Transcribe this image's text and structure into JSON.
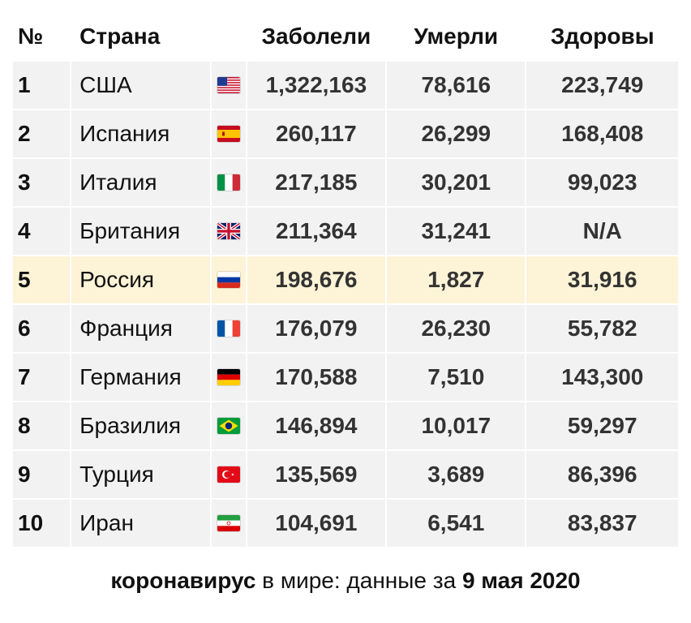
{
  "table": {
    "headers": {
      "num": "№",
      "country": "Страна",
      "cases": "Заболели",
      "deaths": "Умерли",
      "recovered": "Здоровы"
    },
    "rows": [
      {
        "num": "1",
        "country": "США",
        "flag": "us-flag-icon",
        "cases": "1,322,163",
        "deaths": "78,616",
        "recovered": "223,749"
      },
      {
        "num": "2",
        "country": "Испания",
        "flag": "spain-flag-icon",
        "cases": "260,117",
        "deaths": "26,299",
        "recovered": "168,408"
      },
      {
        "num": "3",
        "country": "Италия",
        "flag": "italy-flag-icon",
        "cases": "217,185",
        "deaths": "30,201",
        "recovered": "99,023"
      },
      {
        "num": "4",
        "country": "Британия",
        "flag": "uk-flag-icon",
        "cases": "211,364",
        "deaths": "31,241",
        "recovered": "N/A"
      },
      {
        "num": "5",
        "country": "Россия",
        "flag": "russia-flag-icon",
        "cases": "198,676",
        "deaths": "1,827",
        "recovered": "31,916",
        "highlighted": true
      },
      {
        "num": "6",
        "country": "Франция",
        "flag": "france-flag-icon",
        "cases": "176,079",
        "deaths": "26,230",
        "recovered": "55,782"
      },
      {
        "num": "7",
        "country": "Германия",
        "flag": "germany-flag-icon",
        "cases": "170,588",
        "deaths": "7,510",
        "recovered": "143,300"
      },
      {
        "num": "8",
        "country": "Бразилия",
        "flag": "brazil-flag-icon",
        "cases": "146,894",
        "deaths": "10,017",
        "recovered": "59,297"
      },
      {
        "num": "9",
        "country": "Турция",
        "flag": "turkey-flag-icon",
        "cases": "135,569",
        "deaths": "3,689",
        "recovered": "86,396"
      },
      {
        "num": "10",
        "country": "Иран",
        "flag": "iran-flag-icon",
        "cases": "104,691",
        "deaths": "6,541",
        "recovered": "83,837"
      }
    ]
  },
  "caption": {
    "keyword": "коронавирус",
    "middle": " в мире: данные за ",
    "date": "9 мая 2020"
  },
  "colors": {
    "row_bg": "#f2f2f2",
    "highlight_bg": "#fdf3d6"
  }
}
